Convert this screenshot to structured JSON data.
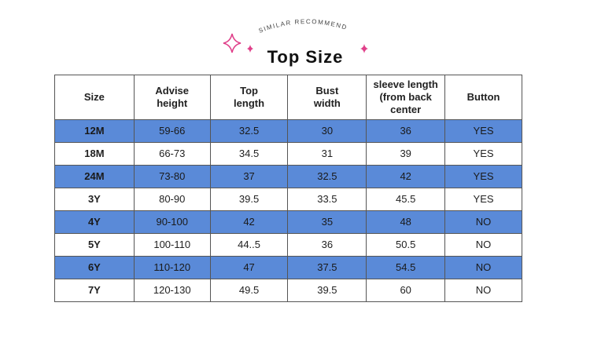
{
  "header": {
    "arc_text": "SIMILAR RECOMMEND",
    "title": "Top Size"
  },
  "table": {
    "columns": [
      "Size",
      "Advise\nheight",
      "Top\nlength",
      "Bust\nwidth",
      "sleeve length\n(from back\ncenter",
      "Button"
    ],
    "rows": [
      [
        "12M",
        "59-66",
        "32.5",
        "30",
        "36",
        "YES"
      ],
      [
        "18M",
        "66-73",
        "34.5",
        "31",
        "39",
        "YES"
      ],
      [
        "24M",
        "73-80",
        "37",
        "32.5",
        "42",
        "YES"
      ],
      [
        "3Y",
        "80-90",
        "39.5",
        "33.5",
        "45.5",
        "YES"
      ],
      [
        "4Y",
        "90-100",
        "42",
        "35",
        "48",
        "NO"
      ],
      [
        "5Y",
        "100-110",
        "44..5",
        "36",
        "50.5",
        "NO"
      ],
      [
        "6Y",
        "110-120",
        "47",
        "37.5",
        "54.5",
        "NO"
      ],
      [
        "7Y",
        "120-130",
        "49.5",
        "39.5",
        "60",
        "NO"
      ]
    ]
  }
}
